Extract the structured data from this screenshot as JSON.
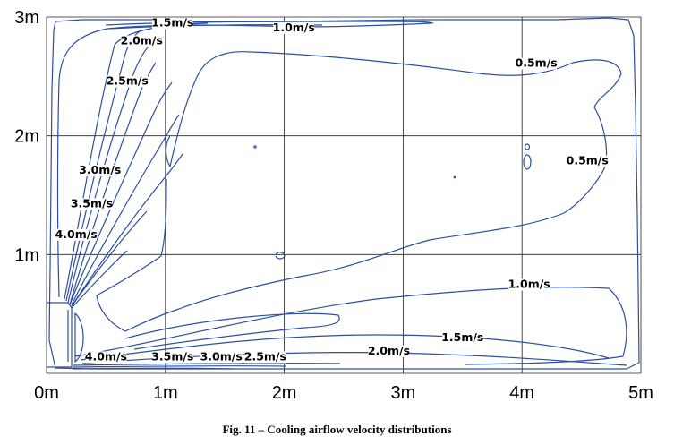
{
  "caption": "Fig. 11 – Cooling airflow velocity distributions",
  "colors": {
    "contour": "#2a4fa0",
    "grid": "#222222",
    "axis_text": "#000000"
  },
  "chart_data": {
    "type": "contour",
    "title": "",
    "xlabel": "",
    "ylabel": "",
    "xlim": [
      0,
      5
    ],
    "ylim": [
      0,
      3
    ],
    "grid": true,
    "x_ticks": [
      0,
      1,
      2,
      3,
      4,
      5
    ],
    "y_ticks": [
      1,
      2,
      3
    ],
    "x_tick_labels": [
      "0m",
      "1m",
      "2m",
      "3m",
      "4m",
      "5m"
    ],
    "y_tick_labels": [
      "1m",
      "2m",
      "3m"
    ],
    "contour_labels": [
      {
        "text": "1.5m/s",
        "x": 1.06,
        "y": 2.92
      },
      {
        "text": "1.0m/s",
        "x": 2.08,
        "y": 2.88
      },
      {
        "text": "2.0m/s",
        "x": 0.8,
        "y": 2.77
      },
      {
        "text": "0.5m/s",
        "x": 4.12,
        "y": 2.58
      },
      {
        "text": "2.5m/s",
        "x": 0.68,
        "y": 2.43
      },
      {
        "text": "0.5m/s",
        "x": 4.55,
        "y": 1.76
      },
      {
        "text": "3.0m/s",
        "x": 0.45,
        "y": 1.68
      },
      {
        "text": "3.5m/s",
        "x": 0.38,
        "y": 1.4
      },
      {
        "text": "4.0m/s",
        "x": 0.25,
        "y": 1.14
      },
      {
        "text": "1.0m/s",
        "x": 4.06,
        "y": 0.72
      },
      {
        "text": "1.5m/s",
        "x": 3.5,
        "y": 0.27
      },
      {
        "text": "2.0m/s",
        "x": 2.88,
        "y": 0.16
      },
      {
        "text": "2.5m/s",
        "x": 1.84,
        "y": 0.11
      },
      {
        "text": "3.0m/s",
        "x": 1.47,
        "y": 0.11
      },
      {
        "text": "3.5m/s",
        "x": 1.06,
        "y": 0.11
      },
      {
        "text": "4.0m/s",
        "x": 0.5,
        "y": 0.11
      }
    ]
  }
}
